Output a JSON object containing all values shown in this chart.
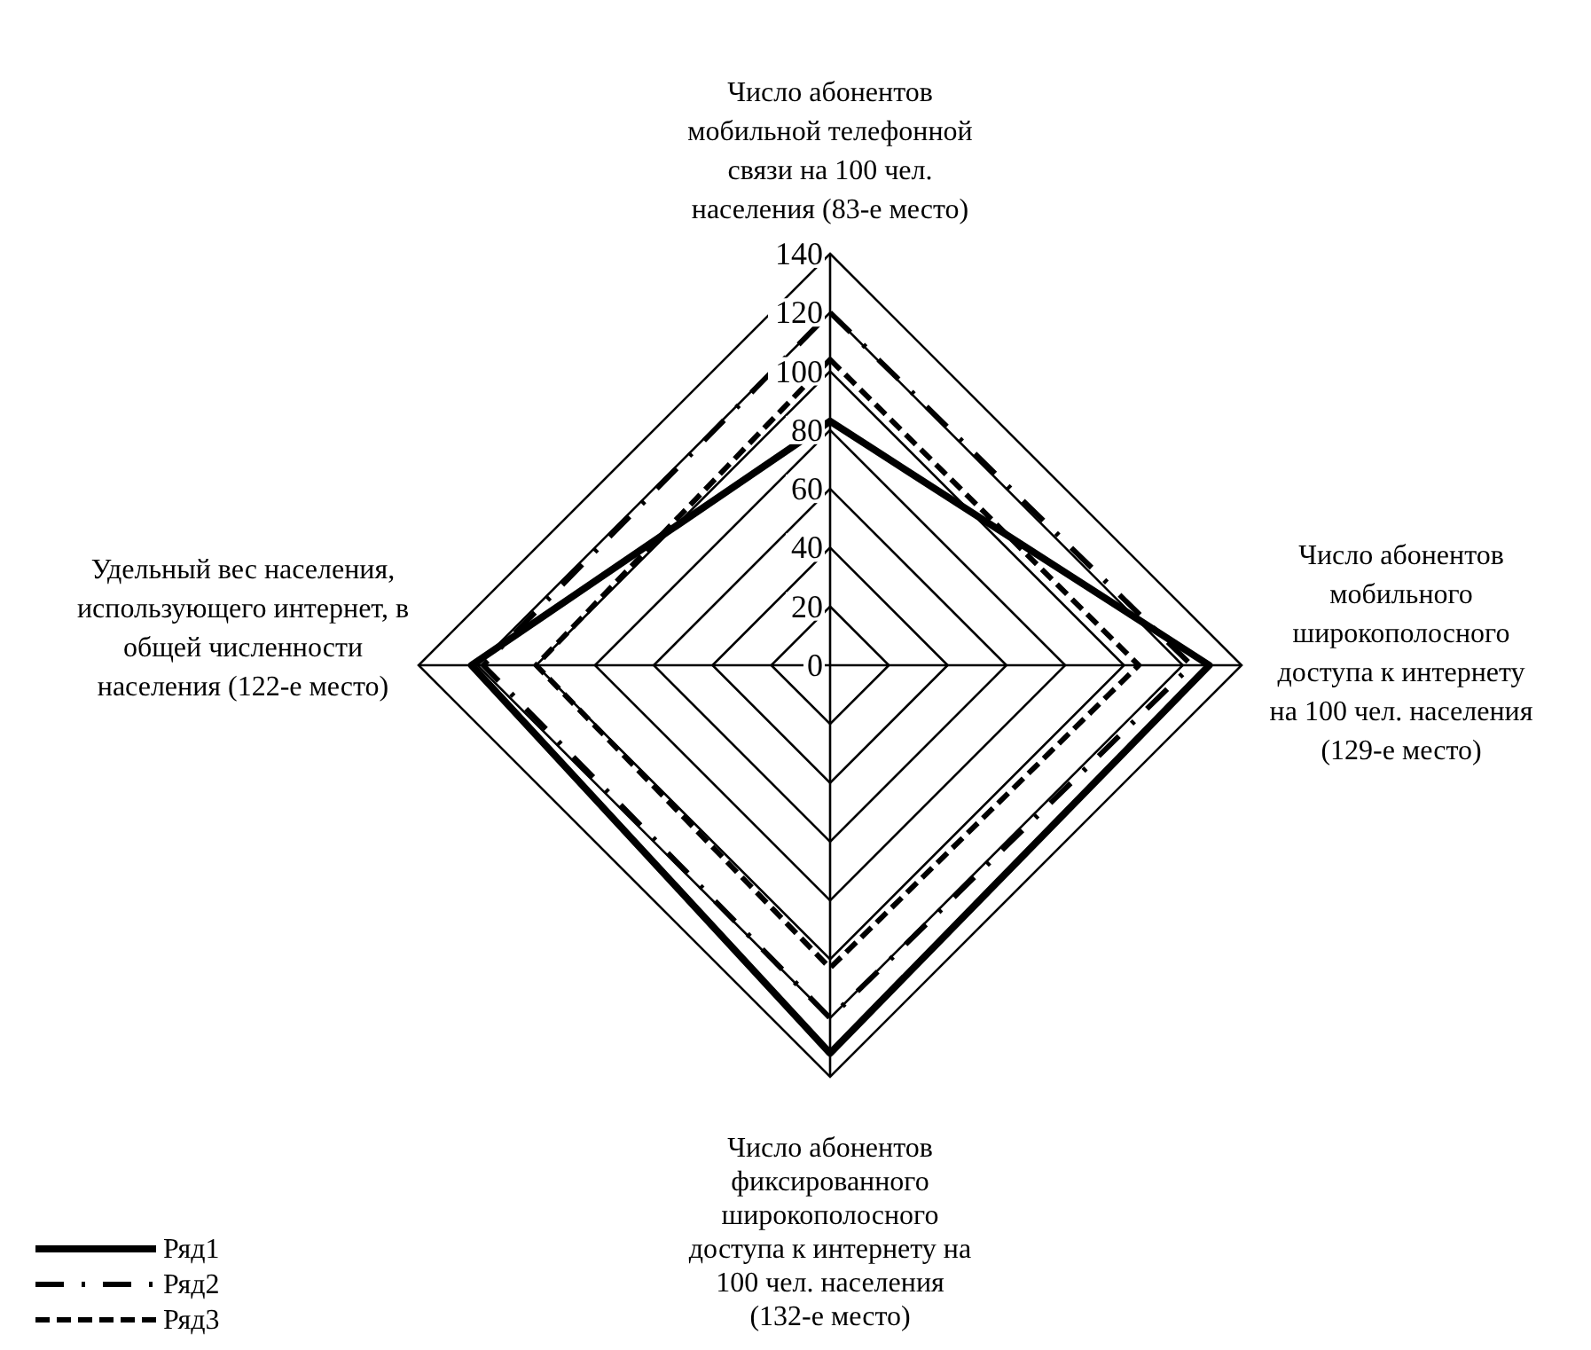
{
  "chart_data": {
    "type": "radar",
    "categories": [
      "Число абонентов мобильной телефонной связи на 100 чел. населения (83-е место)",
      "Число абонентов мобильного широкополосного доступа к интернету на 100 чел. населения (129-е место)",
      "Число абонентов фиксированного широкополосного доступа к интернету на 100 чел. населения (132-е место)",
      "Удельный вес населения, использующего интернет, в общей численности населения (122-е место)"
    ],
    "series": [
      {
        "name": "Ряд1",
        "color": "#000000",
        "values": [
          83,
          129,
          132,
          122
        ],
        "line_style": "solid"
      },
      {
        "name": "Ряд2",
        "color": "#000000",
        "values": [
          120,
          123,
          120,
          118
        ],
        "line_style": "dashdot"
      },
      {
        "name": "Ряд3",
        "color": "#000000",
        "values": [
          104,
          105,
          103,
          100
        ],
        "line_style": "dashed"
      }
    ],
    "ylim": [
      0,
      140
    ],
    "yticks": [
      0,
      20,
      40,
      60,
      80,
      100,
      120,
      140
    ],
    "legend": "bottom left",
    "grid": true
  }
}
